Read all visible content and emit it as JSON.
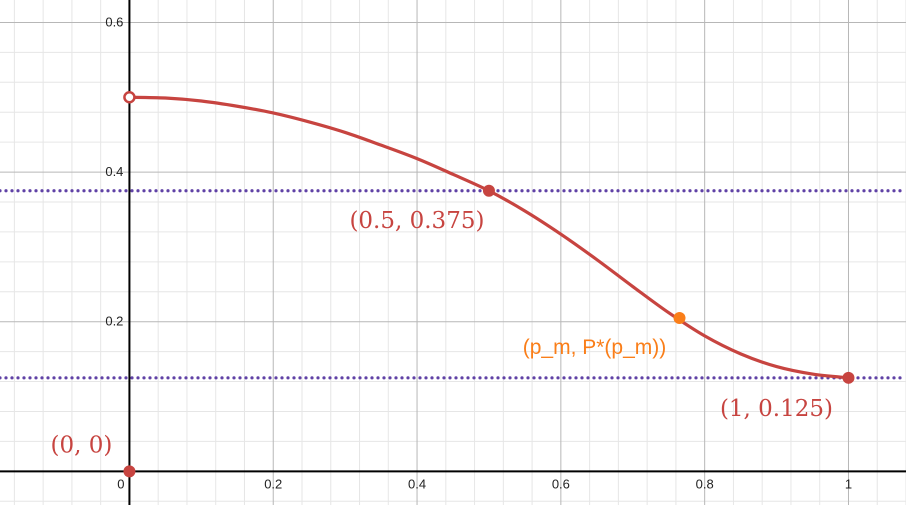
{
  "chart_data": {
    "type": "line",
    "title": "",
    "xlabel": "",
    "ylabel": "",
    "xlim": [
      -0.18,
      1.08
    ],
    "ylim": [
      -0.045,
      0.63
    ],
    "grid": true,
    "x_ticks": [
      0,
      0.2,
      0.4,
      0.6,
      0.8,
      1
    ],
    "x_tick_labels": [
      "0",
      "0.2",
      "0.4",
      "0.6",
      "0.8",
      "1"
    ],
    "y_ticks": [
      0.2,
      0.4,
      0.6
    ],
    "y_tick_labels": [
      "0.2",
      "0.4",
      "0.6"
    ],
    "curve": {
      "color": "#c74440",
      "x": [
        0,
        0.05,
        0.1,
        0.15,
        0.2,
        0.25,
        0.3,
        0.35,
        0.4,
        0.45,
        0.5,
        0.55,
        0.6,
        0.65,
        0.7,
        0.75,
        0.8,
        0.85,
        0.9,
        0.95,
        1
      ],
      "y": [
        0.5,
        0.499,
        0.495,
        0.488,
        0.479,
        0.467,
        0.453,
        0.436,
        0.418,
        0.397,
        0.375,
        0.348,
        0.317,
        0.283,
        0.247,
        0.212,
        0.181,
        0.157,
        0.14,
        0.13,
        0.125
      ]
    },
    "horizontal_lines": [
      {
        "y": 0.375,
        "style": "dotted",
        "color": "#6042a6"
      },
      {
        "y": 0.125,
        "style": "dotted",
        "color": "#6042a6"
      }
    ],
    "points": [
      {
        "x": 0,
        "y": 0.5,
        "style": "open",
        "color": "#c74440",
        "label": ""
      },
      {
        "x": 0.5,
        "y": 0.375,
        "style": "filled",
        "color": "#c74440",
        "label": "(0.5, 0.375)"
      },
      {
        "x": 0.765,
        "y": 0.205,
        "style": "filled",
        "color": "#fa7e19",
        "label": "(p_m, P*(p_m))"
      },
      {
        "x": 1,
        "y": 0.125,
        "style": "filled",
        "color": "#c74440",
        "label": "(1, 0.125)"
      },
      {
        "x": 0,
        "y": 0,
        "style": "filled",
        "color": "#c74440",
        "label": "(0, 0)"
      }
    ]
  }
}
